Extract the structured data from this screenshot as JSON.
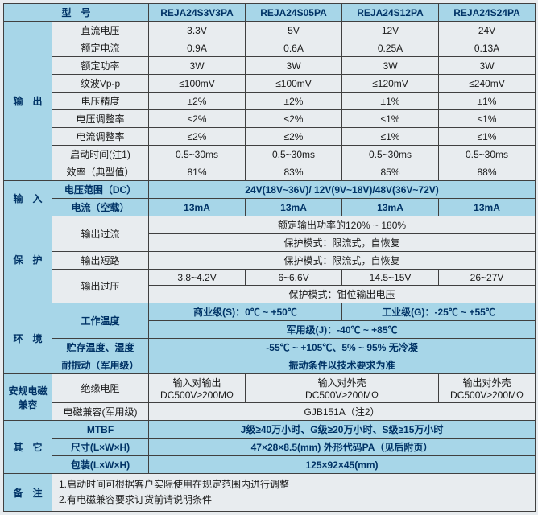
{
  "colors": {
    "header_bg": "#a7d6e8",
    "cell_bg": "#e8ecef",
    "border": "#404040",
    "header_text": "#003366",
    "text": "#1a1a1a"
  },
  "header": {
    "model_label": "型　号",
    "models": [
      "REJA24S3V3PA",
      "REJA24S05PA",
      "REJA24S12PA",
      "REJA24S24PA"
    ]
  },
  "output": {
    "section": "输　出",
    "rows": [
      {
        "label": "直流电压",
        "vals": [
          "3.3V",
          "5V",
          "12V",
          "24V"
        ]
      },
      {
        "label": "额定电流",
        "vals": [
          "0.9A",
          "0.6A",
          "0.25A",
          "0.13A"
        ]
      },
      {
        "label": "额定功率",
        "vals": [
          "3W",
          "3W",
          "3W",
          "3W"
        ]
      },
      {
        "label": "纹波Vp-p",
        "vals": [
          "≤100mV",
          "≤100mV",
          "≤120mV",
          "≤240mV"
        ]
      },
      {
        "label": "电压精度",
        "vals": [
          "±2%",
          "±2%",
          "±1%",
          "±1%"
        ]
      },
      {
        "label": "电压调整率",
        "vals": [
          "≤2%",
          "≤2%",
          "≤1%",
          "≤1%"
        ]
      },
      {
        "label": "电流调整率",
        "vals": [
          "≤2%",
          "≤2%",
          "≤1%",
          "≤1%"
        ]
      },
      {
        "label": "启动时间(注1)",
        "vals": [
          "0.5~30ms",
          "0.5~30ms",
          "0.5~30ms",
          "0.5~30ms"
        ]
      },
      {
        "label": "效率（典型值）",
        "vals": [
          "81%",
          "83%",
          "85%",
          "88%"
        ]
      }
    ]
  },
  "input": {
    "section": "输　入",
    "voltage_label": "电压范围（DC）",
    "voltage_val": "24V(18V~36V)/ 12V(9V~18V)/48V(36V~72V)",
    "current_label": "电流（空载）",
    "current_vals": [
      "13mA",
      "13mA",
      "13mA",
      "13mA"
    ]
  },
  "protect": {
    "section": "保　护",
    "oc_label": "输出过流",
    "oc_line1": "额定输出功率的120% ~ 180%",
    "oc_line2": "保护模式：限流式，自恢复",
    "short_label": "输出短路",
    "short_val": "保护模式：限流式，自恢复",
    "ov_label": "输出过压",
    "ov_vals": [
      "3.8~4.2V",
      "6~6.6V",
      "14.5~15V",
      "26~27V"
    ],
    "ov_mode": "保护模式：钳位输出电压"
  },
  "env": {
    "section": "环　境",
    "temp_label": "工作温度",
    "temp_comm": "商业级(S)：0℃ ~ +50℃",
    "temp_ind": "工业级(G)：-25℃ ~ +55℃",
    "temp_mil": "军用级(J)：-40℃ ~ +85℃",
    "storage_label": "贮存温度、湿度",
    "storage_val": "-55℃ ~ +105℃、5% ~ 95% 无冷凝",
    "vib_label": "耐振动（军用级）",
    "vib_val": "振动条件以技术要求为准"
  },
  "emc": {
    "section": "安规电磁兼容",
    "insul_label": "绝缘电阻",
    "insul_c1_l1": "输入对输出",
    "insul_c1_l2": "DC500V≥200MΩ",
    "insul_c2_l1": "输入对外壳",
    "insul_c2_l2": "DC500V≥200MΩ",
    "insul_c3_l1": "输出对外壳",
    "insul_c3_l2": "DC500V≥200MΩ",
    "emc_label": "电磁兼容(军用级)",
    "emc_val": "GJB151A（注2）"
  },
  "other": {
    "section": "其　它",
    "mtbf_label": "MTBF",
    "mtbf_val": "J级≥40万小时、G级≥20万小时、S级≥15万小时",
    "size_label": "尺寸(L×W×H)",
    "size_val": "47×28×8.5(mm) 外形代码PA（见后附页）",
    "pack_label": "包装(L×W×H)",
    "pack_val": "125×92×45(mm)"
  },
  "notes": {
    "section": "备　注",
    "n1": "1.启动时间可根据客户实际使用在规定范围内进行调整",
    "n2": "2.有电磁兼容要求订货前请说明条件"
  }
}
